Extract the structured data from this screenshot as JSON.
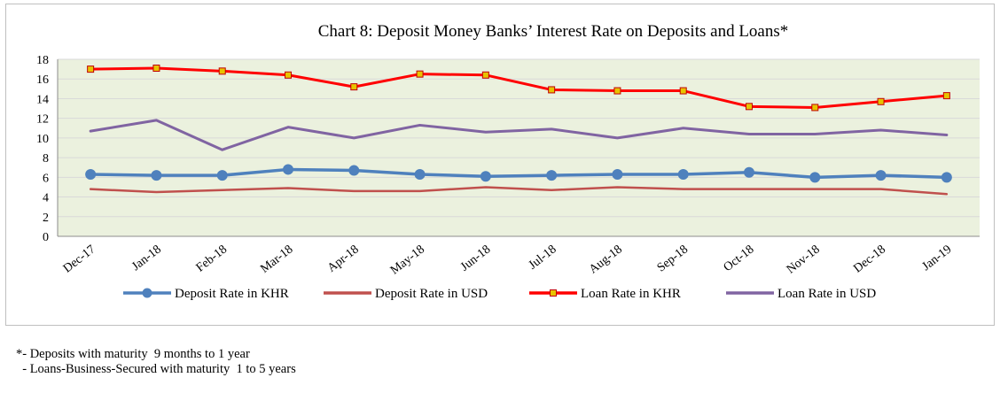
{
  "chart_data": {
    "type": "line",
    "title": "Chart 8: Deposit Money Banks’ Interest Rate on Deposits and Loans*",
    "categories": [
      "Dec-17",
      "Jan-18",
      "Feb-18",
      "Mar-18",
      "Apr-18",
      "May-18",
      "Jun-18",
      "Jul-18",
      "Aug-18",
      "Sep-18",
      "Oct-18",
      "Nov-18",
      "Dec-18",
      "Jan-19"
    ],
    "yticks": [
      "0",
      "2",
      "4",
      "6",
      "8",
      "10",
      "12",
      "14",
      "16",
      "18"
    ],
    "ylim": [
      0,
      18
    ],
    "grid": true,
    "legend_position": "bottom",
    "plot_background": "#ebf1de",
    "series": [
      {
        "name": "Deposit Rate in KHR",
        "color": "#4f81bd",
        "marker": "circle",
        "values": [
          6.3,
          6.2,
          6.2,
          6.8,
          6.7,
          6.3,
          6.1,
          6.2,
          6.3,
          6.3,
          6.5,
          6.0,
          6.2,
          6.0
        ]
      },
      {
        "name": "Deposit Rate in USD",
        "color": "#c0504d",
        "marker": "none",
        "values": [
          4.8,
          4.5,
          4.7,
          4.9,
          4.6,
          4.6,
          5.0,
          4.7,
          5.0,
          4.8,
          4.8,
          4.8,
          4.8,
          4.3
        ]
      },
      {
        "name": "Loan Rate in KHR",
        "color": "#ff0000",
        "marker": "square-yellow",
        "values": [
          17.0,
          17.1,
          16.8,
          16.4,
          15.2,
          16.5,
          16.4,
          14.9,
          14.8,
          14.8,
          13.2,
          13.1,
          13.7,
          14.3
        ]
      },
      {
        "name": "Loan Rate in USD",
        "color": "#8064a2",
        "marker": "none",
        "values": [
          10.7,
          11.8,
          8.8,
          11.1,
          10.0,
          11.3,
          10.6,
          10.9,
          10.0,
          11.0,
          10.4,
          10.4,
          10.8,
          10.3
        ]
      }
    ]
  },
  "notes": [
    "*- Deposits with maturity  9 months to 1 year",
    "  - Loans-Business-Secured with maturity  1 to 5 years"
  ]
}
